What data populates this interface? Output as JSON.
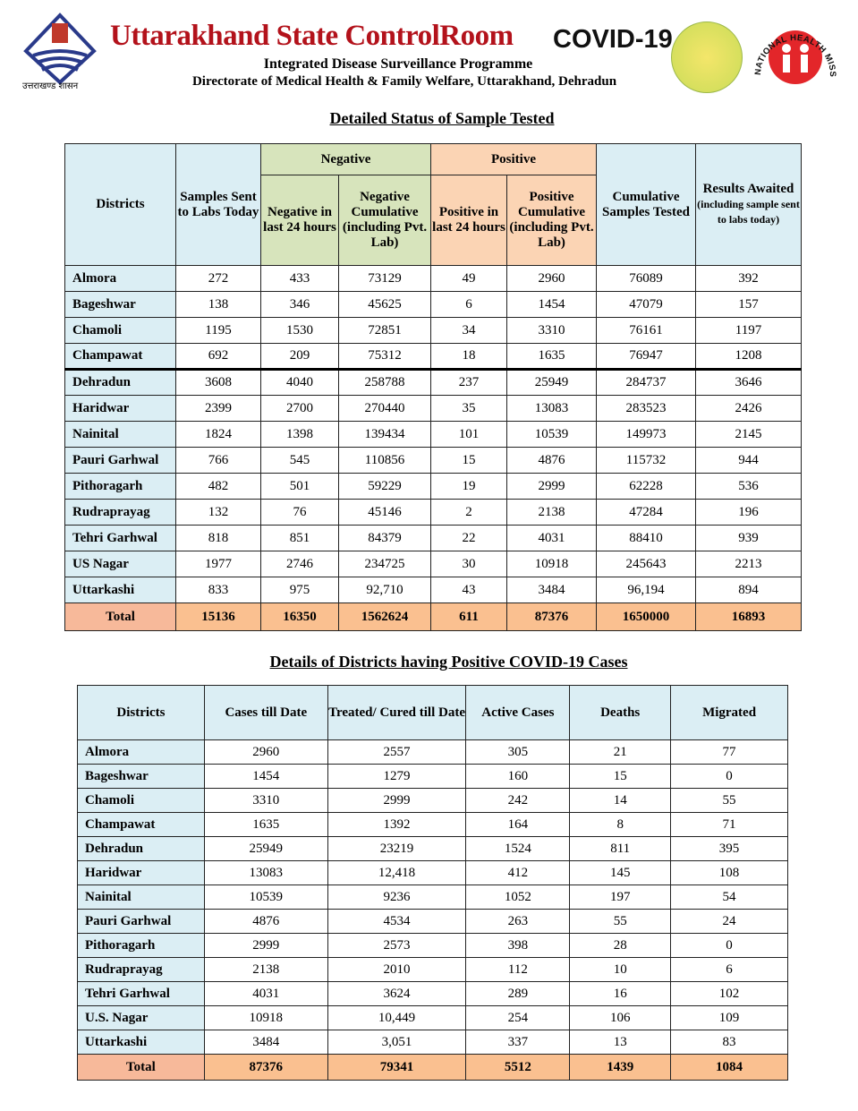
{
  "header": {
    "title": "Uttarakhand State ControlRoom",
    "covid_badge": "COVID-19",
    "line1": "Integrated Disease Surveillance Programme",
    "line2": "Directorate of Medical Health & Family Welfare, Uttarakhand, Dehradun",
    "left_logo_caption": "उत्तराखण्ड शासन",
    "right_logo_text": "NATIONAL HEALTH MISSION"
  },
  "colors": {
    "title": "#b3121b",
    "blue": "#dbeef4",
    "green": "#d7e4bc",
    "orange": "#fbd4b4",
    "total": "#fac090"
  },
  "table1": {
    "title": "Detailed Status of Sample Tested",
    "headers": {
      "districts": "Districts",
      "sent": "Samples Sent to Labs Today",
      "negative": "Negative",
      "positive": "Positive",
      "neg24": "Negative in last 24 hours",
      "negcum": "Negative Cumulative (including Pvt. Lab)",
      "pos24": "Positive in last 24 hours",
      "poscum": "Positive Cumulative (including Pvt. Lab)",
      "cumtested": "Cumulative Samples Tested",
      "awaited": "Results Awaited",
      "awaited_note": "(including sample sent to labs today)"
    },
    "rows": [
      [
        "Almora",
        "272",
        "433",
        "73129",
        "49",
        "2960",
        "76089",
        "392"
      ],
      [
        "Bageshwar",
        "138",
        "346",
        "45625",
        "6",
        "1454",
        "47079",
        "157"
      ],
      [
        "Chamoli",
        "1195",
        "1530",
        "72851",
        "34",
        "3310",
        "76161",
        "1197"
      ],
      [
        "Champawat",
        "692",
        "209",
        "75312",
        "18",
        "1635",
        "76947",
        "1208"
      ],
      [
        "Dehradun",
        "3608",
        "4040",
        "258788",
        "237",
        "25949",
        "284737",
        "3646"
      ],
      [
        "Haridwar",
        "2399",
        "2700",
        "270440",
        "35",
        "13083",
        "283523",
        "2426"
      ],
      [
        "Nainital",
        "1824",
        "1398",
        "139434",
        "101",
        "10539",
        "149973",
        "2145"
      ],
      [
        "Pauri Garhwal",
        "766",
        "545",
        "110856",
        "15",
        "4876",
        "115732",
        "944"
      ],
      [
        "Pithoragarh",
        "482",
        "501",
        "59229",
        "19",
        "2999",
        "62228",
        "536"
      ],
      [
        "Rudraprayag",
        "132",
        "76",
        "45146",
        "2",
        "2138",
        "47284",
        "196"
      ],
      [
        "Tehri Garhwal",
        "818",
        "851",
        "84379",
        "22",
        "4031",
        "88410",
        "939"
      ],
      [
        "US Nagar",
        "1977",
        "2746",
        "234725",
        "30",
        "10918",
        "245643",
        "2213"
      ],
      [
        "Uttarkashi",
        "833",
        "975",
        "92,710",
        "43",
        "3484",
        "96,194",
        "894"
      ]
    ],
    "total": [
      "Total",
      "15136",
      "16350",
      "1562624",
      "611",
      "87376",
      "1650000",
      "16893"
    ]
  },
  "table2": {
    "title": "Details of Districts having Positive COVID-19 Cases",
    "headers": [
      "Districts",
      "Cases till Date",
      "Treated/ Cured till Date",
      "Active Cases",
      "Deaths",
      "Migrated"
    ],
    "rows": [
      [
        "Almora",
        "2960",
        "2557",
        "305",
        "21",
        "77"
      ],
      [
        "Bageshwar",
        "1454",
        "1279",
        "160",
        "15",
        "0"
      ],
      [
        "Chamoli",
        "3310",
        "2999",
        "242",
        "14",
        "55"
      ],
      [
        "Champawat",
        "1635",
        "1392",
        "164",
        "8",
        "71"
      ],
      [
        "Dehradun",
        "25949",
        "23219",
        "1524",
        "811",
        "395"
      ],
      [
        "Haridwar",
        "13083",
        "12,418",
        "412",
        "145",
        "108"
      ],
      [
        "Nainital",
        "10539",
        "9236",
        "1052",
        "197",
        "54"
      ],
      [
        "Pauri Garhwal",
        "4876",
        "4534",
        "263",
        "55",
        "24"
      ],
      [
        "Pithoragarh",
        "2999",
        "2573",
        "398",
        "28",
        "0"
      ],
      [
        "Rudraprayag",
        "2138",
        "2010",
        "112",
        "10",
        "6"
      ],
      [
        "Tehri Garhwal",
        "4031",
        "3624",
        "289",
        "16",
        "102"
      ],
      [
        "U.S. Nagar",
        "10918",
        "10,449",
        "254",
        "106",
        "109"
      ],
      [
        "Uttarkashi",
        "3484",
        "3,051",
        "337",
        "13",
        "83"
      ]
    ],
    "total": [
      "Total",
      "87376",
      "79341",
      "5512",
      "1439",
      "1084"
    ]
  }
}
